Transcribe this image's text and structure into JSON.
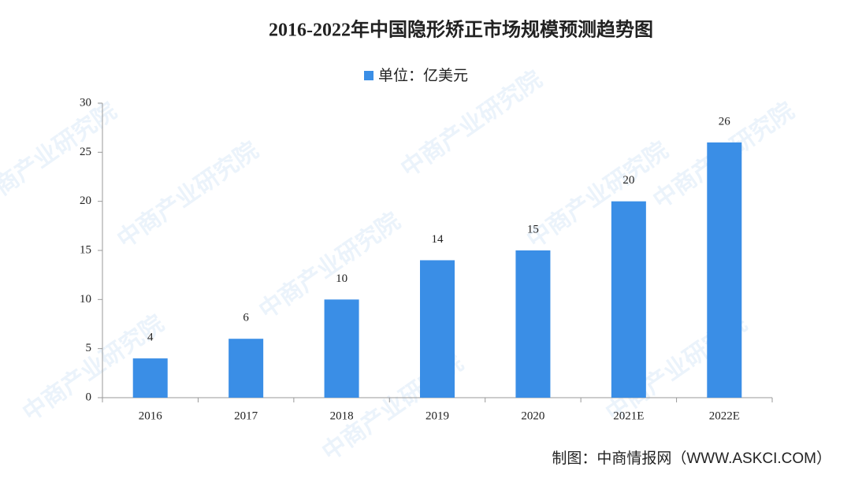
{
  "chart_data": {
    "type": "bar",
    "title": "2016-2022年中国隐形矫正市场规模预测趋势图",
    "categories": [
      "2016",
      "2017",
      "2018",
      "2019",
      "2020",
      "2021E",
      "2022E"
    ],
    "series": [
      {
        "name": "单位：亿美元",
        "color": "#3a8ee6",
        "values": [
          4,
          6,
          10,
          14,
          15,
          20,
          26
        ]
      }
    ],
    "ylim": [
      0,
      30
    ],
    "yticks": [
      0,
      5,
      10,
      15,
      20,
      25,
      30
    ],
    "source": "制图：中商情报网（WWW.ASKCI.COM）",
    "watermark": "中商产业研究院"
  }
}
